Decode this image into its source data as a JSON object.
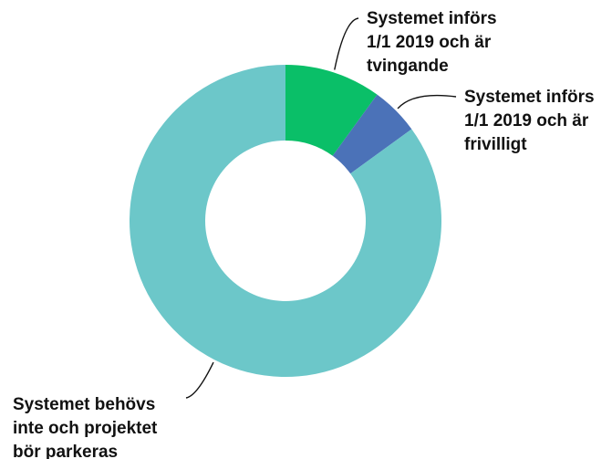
{
  "chart_data": {
    "type": "pie",
    "donut": true,
    "title": "",
    "slices": [
      {
        "label": "Systemet införs 1/1 2019 och är tvingande",
        "value": 10,
        "color": "#0abf68"
      },
      {
        "label": "Systemet införs 1/1 2019 och är frivilligt",
        "value": 5,
        "color": "#4b72b8"
      },
      {
        "label": "Systemet behövs inte och projektet bör parkeras",
        "value": 85,
        "color": "#6cc7c9"
      }
    ],
    "legend": "none",
    "labels": [
      [
        "Systemet införs",
        "1/1 2019 och är",
        "tvingande"
      ],
      [
        "Systemet införs",
        "1/1 2019 och är",
        "frivilligt"
      ],
      [
        "Systemet behövs",
        "inte och projektet",
        "bör parkeras"
      ]
    ]
  }
}
